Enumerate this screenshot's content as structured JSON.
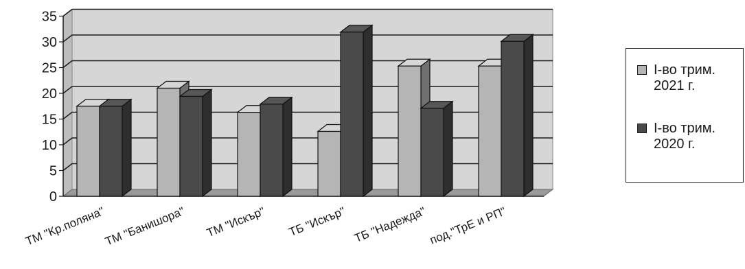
{
  "chart_data": {
    "type": "bar",
    "categories": [
      "ТМ \"Кр.поляна\"",
      "ТМ \"Банишора\"",
      "ТМ \"Искър\"",
      "ТБ \"Искър\"",
      "ТБ \"Надежда\"",
      "под.\"ТрЕ и РП\""
    ],
    "series": [
      {
        "name": "I-во трим.\n2021 г.",
        "values": [
          17.5,
          21,
          16.3,
          12.6,
          25.3,
          25.3
        ],
        "color": "#b5b5b5"
      },
      {
        "name": "I-во трим.\n2020 г.",
        "values": [
          17.5,
          19.4,
          17.9,
          31.9,
          17.1,
          30.1
        ],
        "color": "#4a4a4a"
      }
    ],
    "ylim": [
      0,
      35
    ],
    "yticks": [
      "0",
      "5",
      "10",
      "15",
      "20",
      "25",
      "30",
      "35"
    ],
    "grid": true,
    "three_d": true,
    "legend_position": "right",
    "title": "",
    "xlabel": "",
    "ylabel": ""
  }
}
